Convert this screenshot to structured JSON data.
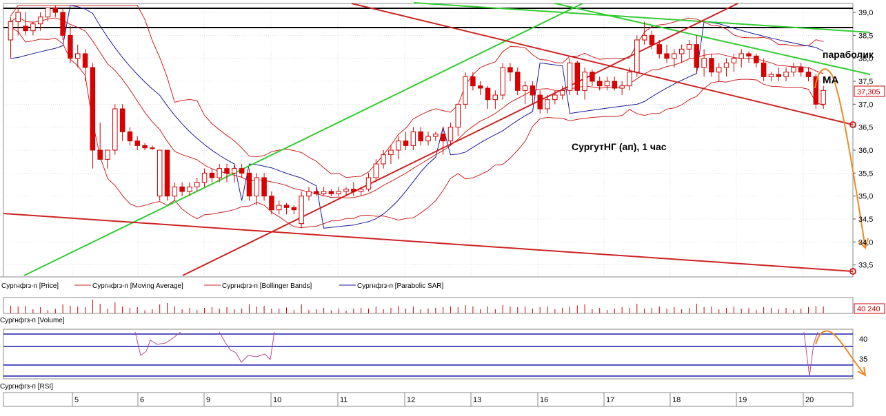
{
  "chart_data": {
    "type": "candlestick",
    "annotation_title": "СургутНГ (ап),  1 час",
    "annotation_parabolic": "параболик",
    "annotation_ma": "MA",
    "price_yaxis": {
      "ticks": [
        "39,0",
        "38,5",
        "38,0",
        "37,5",
        "37,0",
        "36,5",
        "36,0",
        "35,5",
        "35,0",
        "34,5",
        "34,0",
        "33,5"
      ],
      "min": 33.3,
      "max": 39.15
    },
    "last_price_label": "37,305",
    "last_price": 37.305,
    "volume_label": "40 240",
    "rsi_yaxis": {
      "ticks": [
        "40",
        "35"
      ]
    },
    "x_ticks": [
      "5",
      "6",
      "9",
      "10",
      "11",
      "12",
      "13",
      "16",
      "17",
      "18",
      "19",
      "20"
    ],
    "legend": [
      {
        "label": "Сургнфгз-п [Price]",
        "color": "#cc0000"
      },
      {
        "label": "Сургнфгз-п [Moving Average]",
        "color": "#cc0000"
      },
      {
        "label": "Сургнфгз-п [Bollinger Bands]",
        "color": "#cc0000"
      },
      {
        "label": "Сургнфгз-п [Parabolic SAR]",
        "color": "#1a1a99"
      }
    ],
    "volume_panel_label": "Сургнфгз-п [Volume]",
    "rsi_panel_label": "Сургнфгз-п [RSI]",
    "candles": [
      [
        38.4,
        38.9,
        38.0,
        38.8
      ],
      [
        38.8,
        39.1,
        38.5,
        39.0
      ],
      [
        38.7,
        39.0,
        38.5,
        38.6
      ],
      [
        38.6,
        38.8,
        38.5,
        38.75
      ],
      [
        38.75,
        39.0,
        38.6,
        38.9
      ],
      [
        38.9,
        39.1,
        38.8,
        39.1
      ],
      [
        39.1,
        39.15,
        38.9,
        39.0
      ],
      [
        39.0,
        39.1,
        38.4,
        38.5
      ],
      [
        38.5,
        38.7,
        37.9,
        38.0
      ],
      [
        38.0,
        38.3,
        37.8,
        38.1
      ],
      [
        38.1,
        38.2,
        37.5,
        37.8
      ],
      [
        37.8,
        37.9,
        35.6,
        36.0
      ],
      [
        36.0,
        36.6,
        35.8,
        35.8
      ],
      [
        35.8,
        36.0,
        35.6,
        36.0
      ],
      [
        36.0,
        37.0,
        35.9,
        36.9
      ],
      [
        36.9,
        37.0,
        36.2,
        36.4
      ],
      [
        36.4,
        36.5,
        36.1,
        36.2
      ],
      [
        36.2,
        36.3,
        36.0,
        36.1
      ],
      [
        36.1,
        36.15,
        36.0,
        36.05
      ],
      [
        36.05,
        36.1,
        36.0,
        36.05
      ],
      [
        35.0,
        36.0,
        34.9,
        36.0
      ],
      [
        36.0,
        36.0,
        34.9,
        35.0
      ],
      [
        35.0,
        35.3,
        34.9,
        35.2
      ],
      [
        35.2,
        35.3,
        35.0,
        35.1
      ],
      [
        35.1,
        35.3,
        35.0,
        35.2
      ],
      [
        35.2,
        35.4,
        35.1,
        35.3
      ],
      [
        35.3,
        35.6,
        35.2,
        35.5
      ],
      [
        35.5,
        35.6,
        35.3,
        35.4
      ],
      [
        35.4,
        35.7,
        35.3,
        35.6
      ],
      [
        35.6,
        35.7,
        35.3,
        35.5
      ],
      [
        35.5,
        35.7,
        35.3,
        35.6
      ],
      [
        35.6,
        35.7,
        35.4,
        35.5
      ],
      [
        35.5,
        35.6,
        34.9,
        35.0
      ],
      [
        35.0,
        35.5,
        34.8,
        35.4
      ],
      [
        35.4,
        35.5,
        34.9,
        35.0
      ],
      [
        35.0,
        35.1,
        34.6,
        34.7
      ],
      [
        34.7,
        34.9,
        34.6,
        34.8
      ],
      [
        34.8,
        34.85,
        34.6,
        34.75
      ],
      [
        34.75,
        34.8,
        34.6,
        34.7
      ],
      [
        34.4,
        35.1,
        34.3,
        35.0
      ],
      [
        35.0,
        35.2,
        34.9,
        35.1
      ],
      [
        35.1,
        35.2,
        35.0,
        35.05
      ],
      [
        35.05,
        35.2,
        35.0,
        35.1
      ],
      [
        35.1,
        35.15,
        35.0,
        35.05
      ],
      [
        35.05,
        35.2,
        35.0,
        35.1
      ],
      [
        35.1,
        35.2,
        35.0,
        35.15
      ],
      [
        35.15,
        35.3,
        35.0,
        35.1
      ],
      [
        35.1,
        35.2,
        35.0,
        35.15
      ],
      [
        35.15,
        35.5,
        35.1,
        35.4
      ],
      [
        35.4,
        35.8,
        35.3,
        35.7
      ],
      [
        35.7,
        36.0,
        35.6,
        35.9
      ],
      [
        35.9,
        36.1,
        35.7,
        36.0
      ],
      [
        36.0,
        36.3,
        35.8,
        36.2
      ],
      [
        36.2,
        36.4,
        36.0,
        36.1
      ],
      [
        36.1,
        36.5,
        36.0,
        36.4
      ],
      [
        36.4,
        36.5,
        36.1,
        36.2
      ],
      [
        36.2,
        36.4,
        36.1,
        36.3
      ],
      [
        36.3,
        36.4,
        36.2,
        36.35
      ],
      [
        36.35,
        36.5,
        35.9,
        36.2
      ],
      [
        36.2,
        36.6,
        36.1,
        36.5
      ],
      [
        36.5,
        37.0,
        36.3,
        37.0
      ],
      [
        37.0,
        37.7,
        36.9,
        37.6
      ],
      [
        37.6,
        37.7,
        37.3,
        37.4
      ],
      [
        37.4,
        37.5,
        37.2,
        37.35
      ],
      [
        37.35,
        37.4,
        36.9,
        37.1
      ],
      [
        37.1,
        37.3,
        36.9,
        37.2
      ],
      [
        37.2,
        37.9,
        37.1,
        37.8
      ],
      [
        37.8,
        37.9,
        37.5,
        37.7
      ],
      [
        37.7,
        37.8,
        37.2,
        37.3
      ],
      [
        37.3,
        37.5,
        37.0,
        37.4
      ],
      [
        37.4,
        37.5,
        37.0,
        37.2
      ],
      [
        37.2,
        37.3,
        36.8,
        36.9
      ],
      [
        36.9,
        37.2,
        36.8,
        37.1
      ],
      [
        37.1,
        37.3,
        37.0,
        37.2
      ],
      [
        37.2,
        37.4,
        37.1,
        37.3
      ],
      [
        37.3,
        38.0,
        37.2,
        37.9
      ],
      [
        37.9,
        37.95,
        37.2,
        37.3
      ],
      [
        37.3,
        37.8,
        37.1,
        37.7
      ],
      [
        37.7,
        37.75,
        37.4,
        37.5
      ],
      [
        37.5,
        37.6,
        37.3,
        37.4
      ],
      [
        37.4,
        37.6,
        37.3,
        37.5
      ],
      [
        37.5,
        37.6,
        37.3,
        37.35
      ],
      [
        37.35,
        37.5,
        37.2,
        37.4
      ],
      [
        37.4,
        37.8,
        37.3,
        37.7
      ],
      [
        37.7,
        38.5,
        37.6,
        38.4
      ],
      [
        38.4,
        38.8,
        38.3,
        38.5
      ],
      [
        38.5,
        38.6,
        38.2,
        38.3
      ],
      [
        38.3,
        38.4,
        38.0,
        38.1
      ],
      [
        38.1,
        38.3,
        37.9,
        38.0
      ],
      [
        38.0,
        38.2,
        37.8,
        38.1
      ],
      [
        38.1,
        38.3,
        37.9,
        38.2
      ],
      [
        38.2,
        38.4,
        38.0,
        38.3
      ],
      [
        38.3,
        38.5,
        37.7,
        37.8
      ],
      [
        37.8,
        38.2,
        37.6,
        38.0
      ],
      [
        38.0,
        38.1,
        37.6,
        37.7
      ],
      [
        37.7,
        37.9,
        37.5,
        37.8
      ],
      [
        37.8,
        38.0,
        37.6,
        37.9
      ],
      [
        37.9,
        38.1,
        37.7,
        38.0
      ],
      [
        38.0,
        38.2,
        37.8,
        38.1
      ],
      [
        38.1,
        38.15,
        37.9,
        38.05
      ],
      [
        38.05,
        38.1,
        37.8,
        37.9
      ],
      [
        37.9,
        38.0,
        37.5,
        37.6
      ],
      [
        37.6,
        37.7,
        37.5,
        37.65
      ],
      [
        37.65,
        37.8,
        37.5,
        37.6
      ],
      [
        37.6,
        37.8,
        37.5,
        37.7
      ],
      [
        37.7,
        37.9,
        37.6,
        37.8
      ],
      [
        37.8,
        37.9,
        37.6,
        37.7
      ],
      [
        37.7,
        37.8,
        37.5,
        37.6
      ],
      [
        37.6,
        37.65,
        36.9,
        37.0
      ],
      [
        37.0,
        37.4,
        36.9,
        37.3
      ]
    ]
  }
}
